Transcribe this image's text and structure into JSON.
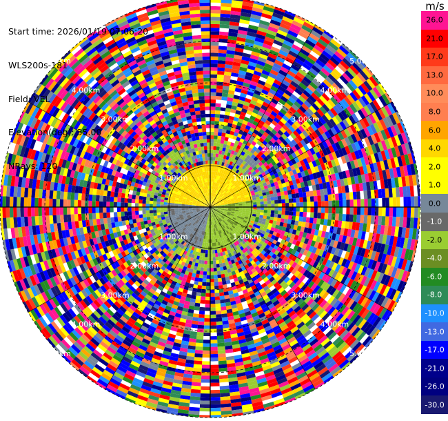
{
  "header": {
    "start_time": "Start time: 2026/01/19 07:06:20",
    "instrument": "WLS200s-181",
    "field": "Field: VEL",
    "elevation": "Elevation(deg): 35.00",
    "nrays": "NRays: 120"
  },
  "colorbar": {
    "unit": "m/s",
    "levels": [
      {
        "label": "26.0",
        "color": "#ff1493"
      },
      {
        "label": "21.0",
        "color": "#ff0000"
      },
      {
        "label": "17.0",
        "color": "#ff3a1a"
      },
      {
        "label": "13.0",
        "color": "#ff6a40"
      },
      {
        "label": "10.0",
        "color": "#ff8c5a"
      },
      {
        "label": "8.0",
        "color": "#ff7f50"
      },
      {
        "label": "6.0",
        "color": "#ffa500"
      },
      {
        "label": "4.0",
        "color": "#ffd700"
      },
      {
        "label": "2.0",
        "color": "#ffff00"
      },
      {
        "label": "1.0",
        "color": "#ffff00"
      },
      {
        "label": "0.0",
        "color": "#778899"
      },
      {
        "label": "-1.0",
        "color": "#696969"
      },
      {
        "label": "-2.0",
        "color": "#9acd32"
      },
      {
        "label": "-4.0",
        "color": "#6b8e23"
      },
      {
        "label": "-6.0",
        "color": "#228b22"
      },
      {
        "label": "-8.0",
        "color": "#2e8b57"
      },
      {
        "label": "-10.0",
        "color": "#1e90ff"
      },
      {
        "label": "-13.0",
        "color": "#4169e1"
      },
      {
        "label": "-17.0",
        "color": "#0000ff"
      },
      {
        "label": "-21.0",
        "color": "#00008b"
      },
      {
        "label": "-26.0",
        "color": "#000080"
      },
      {
        "label": "-30.0",
        "color": "#191970"
      }
    ]
  },
  "range_rings": {
    "labels": [
      "1.00km",
      "2.00km",
      "3.00km",
      "4.00km",
      "5.00km"
    ]
  }
}
